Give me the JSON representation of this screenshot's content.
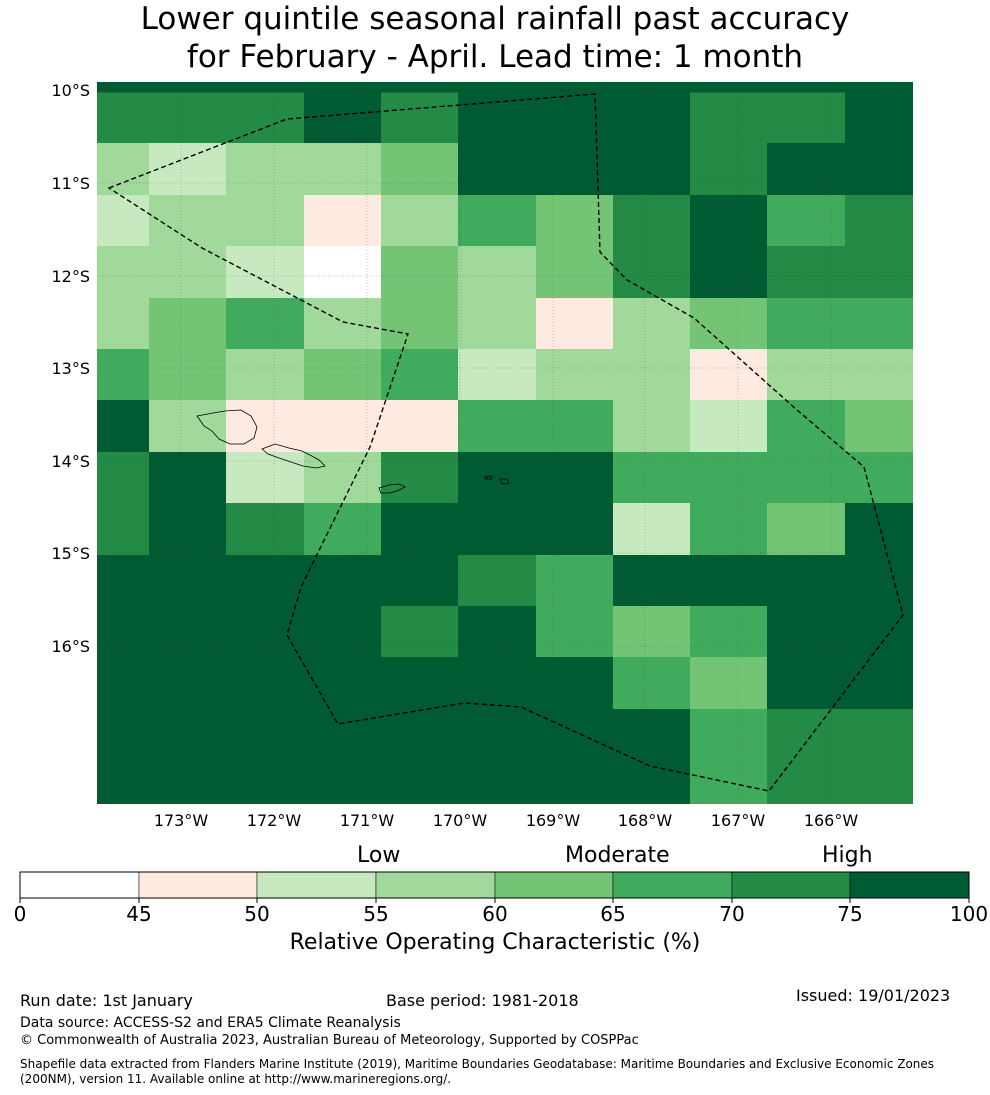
{
  "title": {
    "line1": "Lower quintile seasonal rainfall past accuracy",
    "line2": "for February - April. Lead time: 1 month"
  },
  "map": {
    "lat_labels": [
      "10°S",
      "11°S",
      "12°S",
      "13°S",
      "14°S",
      "15°S",
      "16°S"
    ],
    "lon_labels": [
      "173°W",
      "172°W",
      "171°W",
      "170°W",
      "169°W",
      "168°W",
      "167°W",
      "166°W"
    ],
    "grid_classes_row_major": [
      [
        6,
        6,
        7,
        7,
        7,
        7,
        7,
        7,
        7,
        7,
        7
      ],
      [
        6,
        6,
        6,
        7,
        6,
        7,
        7,
        7,
        6,
        6,
        7
      ],
      [
        3,
        2,
        3,
        3,
        4,
        7,
        7,
        7,
        6,
        7,
        7
      ],
      [
        2,
        3,
        3,
        1,
        3,
        5,
        4,
        6,
        7,
        5,
        6
      ],
      [
        3,
        3,
        2,
        0,
        4,
        3,
        4,
        6,
        7,
        6,
        6
      ],
      [
        3,
        4,
        5,
        3,
        4,
        3,
        1,
        3,
        4,
        5,
        5
      ],
      [
        5,
        4,
        3,
        4,
        5,
        2,
        3,
        3,
        1,
        3,
        3
      ],
      [
        7,
        3,
        1,
        1,
        1,
        5,
        5,
        3,
        2,
        5,
        4
      ],
      [
        6,
        7,
        2,
        3,
        6,
        7,
        7,
        5,
        5,
        5,
        5
      ],
      [
        6,
        7,
        6,
        5,
        7,
        7,
        7,
        2,
        5,
        4,
        7
      ],
      [
        7,
        7,
        7,
        7,
        7,
        6,
        5,
        7,
        7,
        7,
        7
      ],
      [
        7,
        7,
        7,
        7,
        6,
        7,
        5,
        4,
        5,
        7,
        7
      ],
      [
        7,
        7,
        7,
        7,
        7,
        7,
        7,
        5,
        4,
        7,
        7
      ],
      [
        7,
        7,
        7,
        7,
        7,
        7,
        7,
        7,
        5,
        6,
        6
      ]
    ],
    "colors": [
      "#ffffff",
      "#feeae0",
      "#c7e9c0",
      "#a1d99b",
      "#74c476",
      "#41ab5d",
      "#238b45",
      "#005a32"
    ]
  },
  "legend": {
    "category_words": [
      "Low",
      "Moderate",
      "High"
    ],
    "tick_labels": [
      "0",
      "45",
      "50",
      "55",
      "60",
      "65",
      "70",
      "75",
      "100"
    ],
    "title": "Relative Operating Characteristic (%)"
  },
  "footer": {
    "run_date": "Run date: 1st January",
    "base_period": "Base period: 1981-2018",
    "issued": "Issued: 19/01/2023",
    "data_source": "Data source: ACCESS-S2 and ERA5 Climate Reanalysis",
    "copyright": "© Commonwealth of Australia 2023, Australian Bureau of Meteorology, Supported by COSPPac",
    "shapefile_line1": "Shapefile data extracted from Flanders Marine Institute (2019), Maritime Boundaries Geodatabase: Maritime Boundaries and Exclusive Economic Zones",
    "shapefile_line2": "(200NM), version 11. Available online at http://www.marineregions.org/."
  }
}
